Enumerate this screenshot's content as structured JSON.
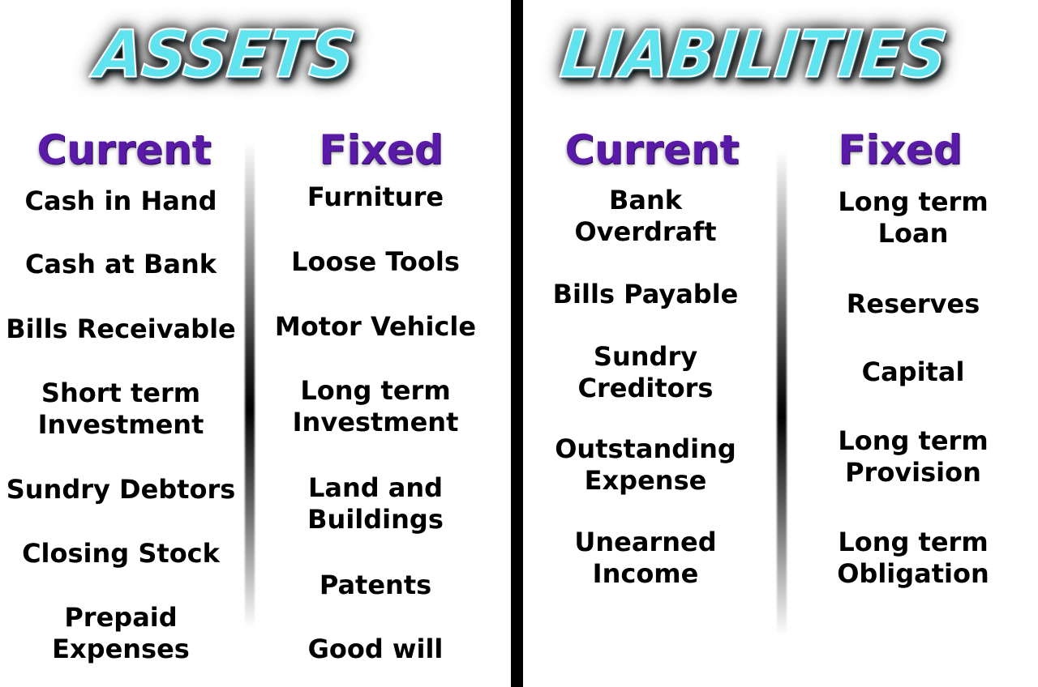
{
  "assets": {
    "title": "ASSETS",
    "current": {
      "heading": "Current",
      "items": [
        "Cash in Hand",
        "Cash at Bank",
        "Bills Receivable",
        "Short term\nInvestment",
        "Sundry Debtors",
        "Closing Stock",
        "Prepaid\nExpenses"
      ]
    },
    "fixed": {
      "heading": "Fixed",
      "items": [
        "Furniture",
        "Loose Tools",
        "Motor Vehicle",
        "Long term\nInvestment",
        "Land and\nBuildings",
        "Patents",
        "Good will"
      ]
    }
  },
  "liabilities": {
    "title": "LIABILITIES",
    "current": {
      "heading": "Current",
      "items": [
        "Bank\nOverdraft",
        "Bills Payable",
        "Sundry\nCreditors",
        "Outstanding\nExpense",
        "Unearned\nIncome"
      ]
    },
    "fixed": {
      "heading": "Fixed",
      "items": [
        "Long term\nLoan",
        "Reserves",
        "Capital",
        "Long term\nProvision",
        "Long term\nObligation"
      ]
    }
  },
  "colors": {
    "title_fill": "#5fe3ee",
    "heading": "#5a1aa8",
    "text": "#000000",
    "divider": "#000000"
  }
}
